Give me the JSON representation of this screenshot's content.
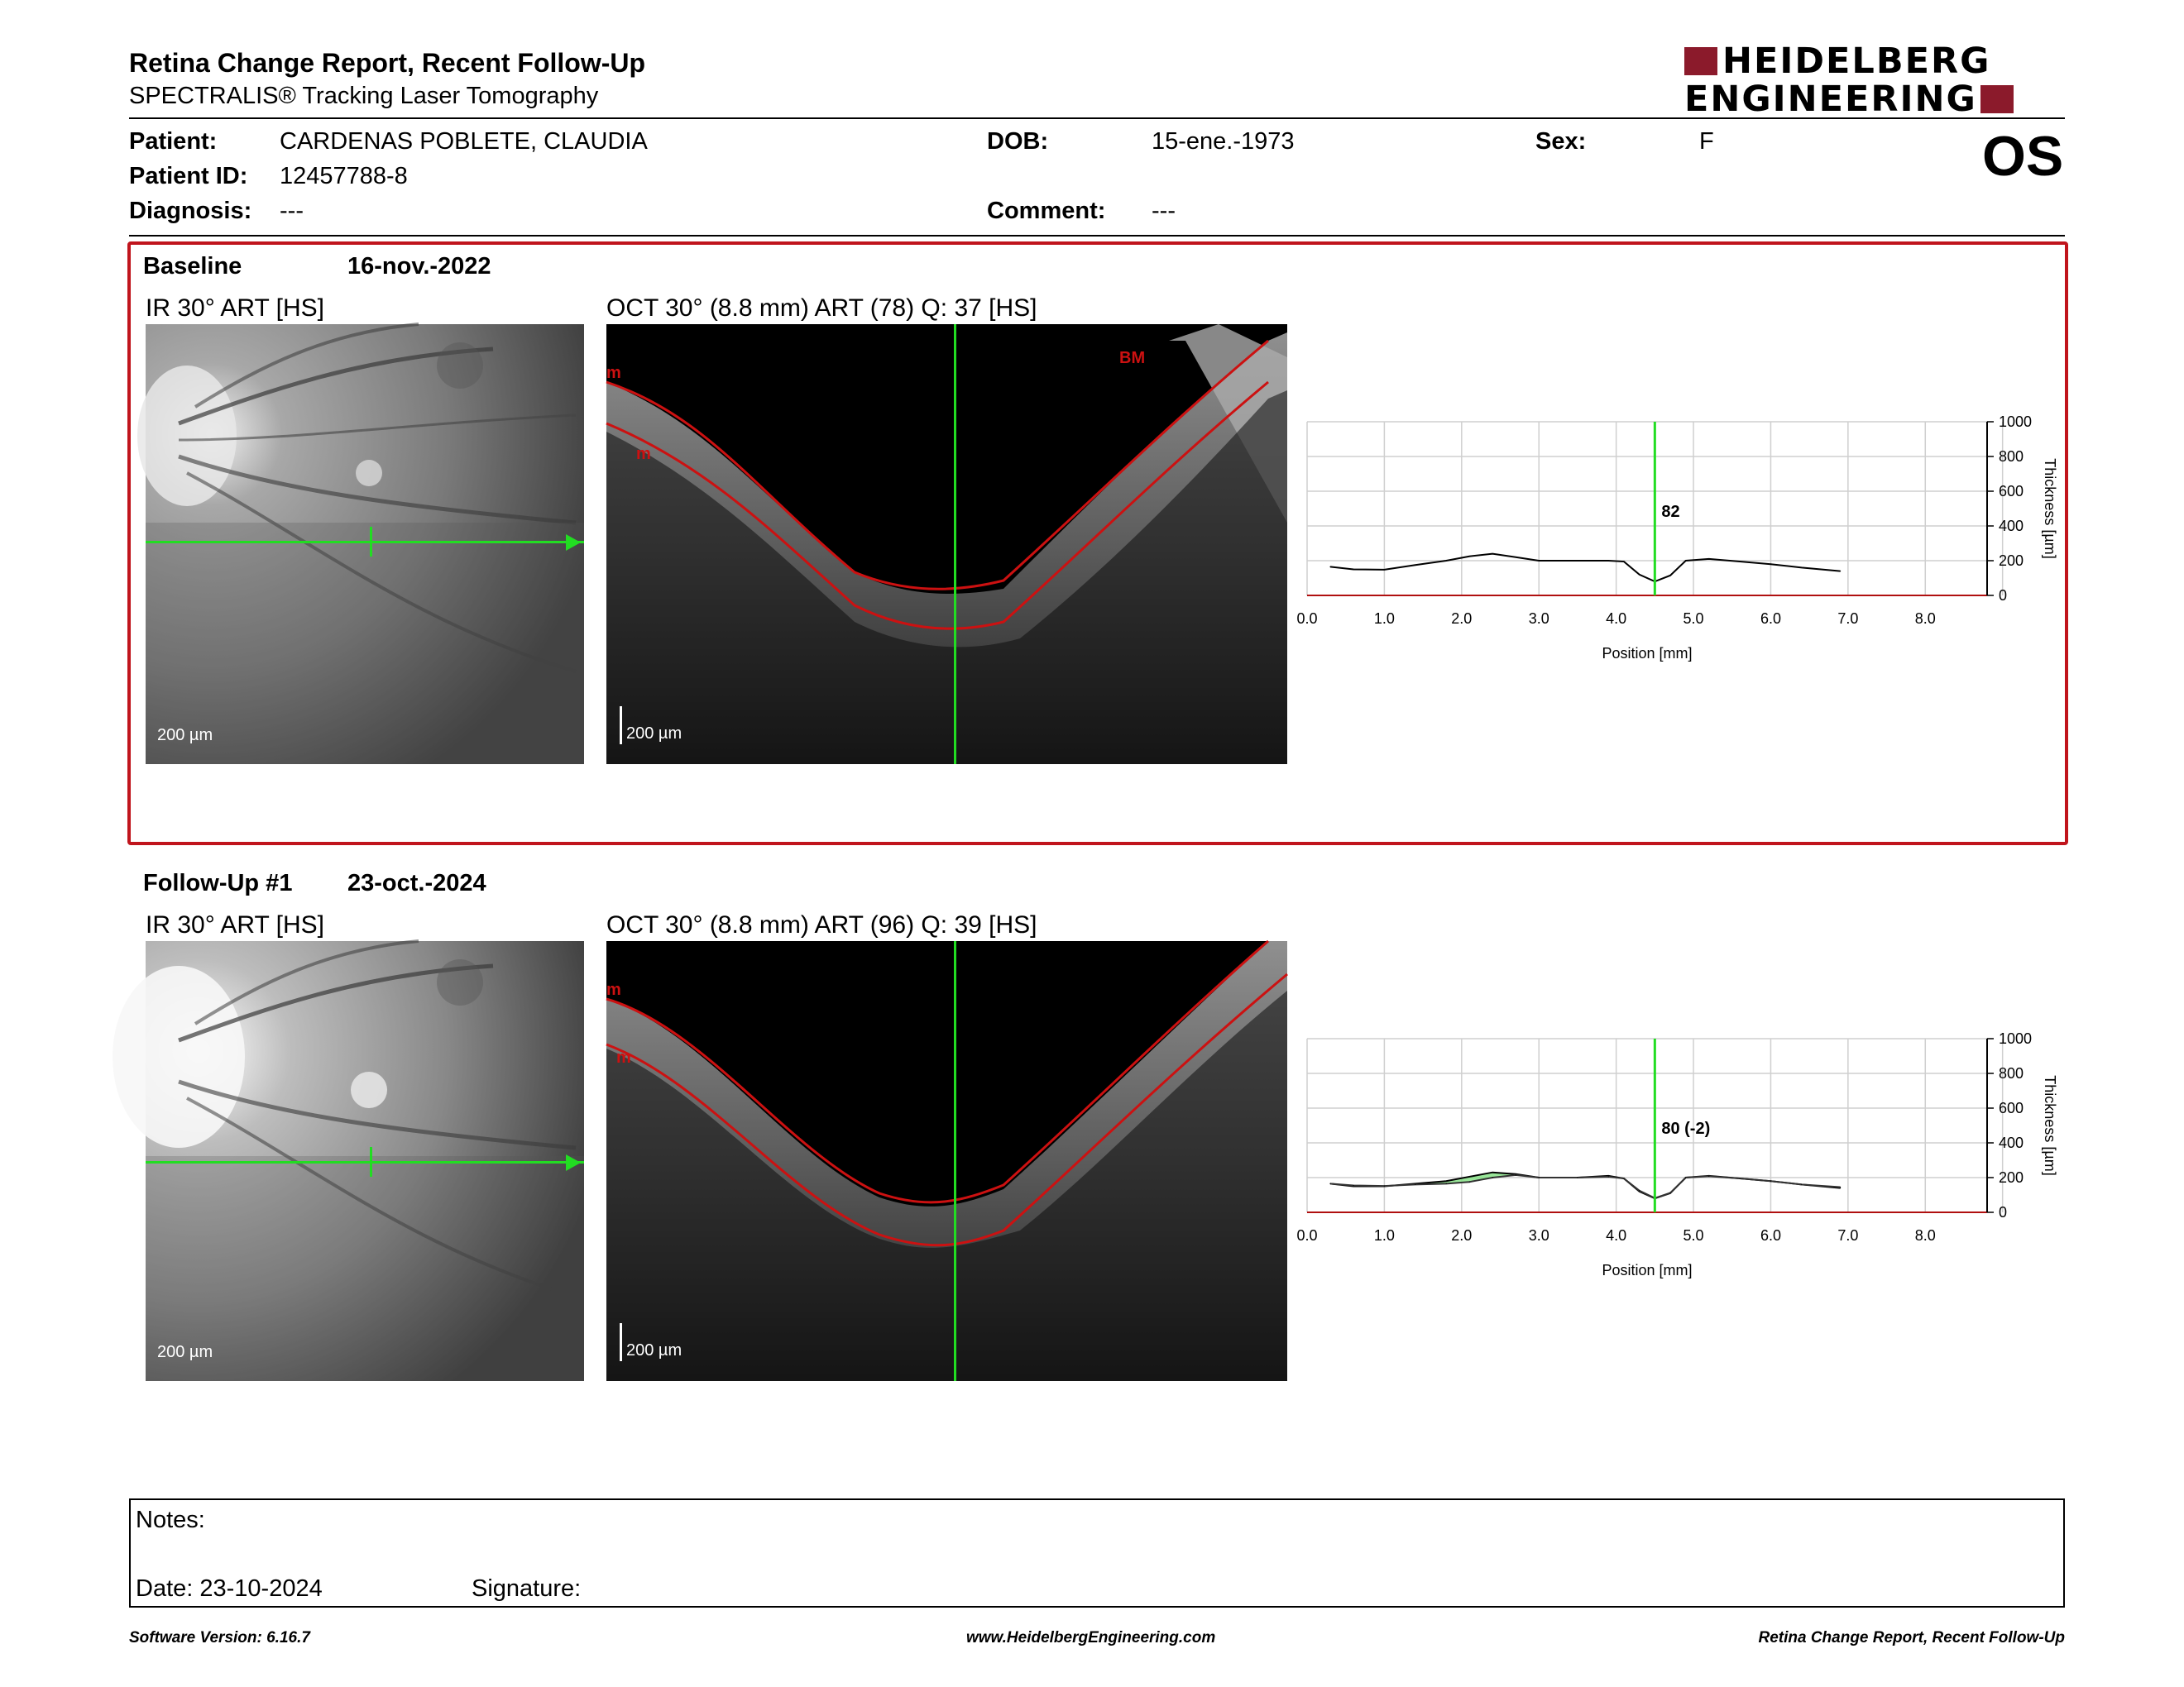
{
  "header": {
    "title": "Retina Change Report, Recent Follow-Up",
    "subtitle": "SPECTRALIS® Tracking Laser Tomography",
    "logo_line1": "HEIDELBERG",
    "logo_line2": "ENGINEERING",
    "eye": "OS"
  },
  "patient": {
    "patient_label": "Patient:",
    "patient_value": "CARDENAS POBLETE, CLAUDIA",
    "dob_label": "DOB:",
    "dob_value": "15-ene.-1973",
    "sex_label": "Sex:",
    "sex_value": "F",
    "id_label": "Patient ID:",
    "id_value": "12457788-8",
    "diagnosis_label": "Diagnosis:",
    "diagnosis_value": "---",
    "comment_label": "Comment:",
    "comment_value": "---"
  },
  "baseline": {
    "label": "Baseline",
    "date": "16-nov.-2022",
    "ir_label": "IR 30° ART [HS]",
    "oct_label": "OCT 30° (8.8 mm) ART (78) Q: 37 [HS]",
    "scale": "200 µm",
    "layer_ilm": "m",
    "layer_rpe": "m",
    "layer_bm": "BM",
    "marker_value": "82"
  },
  "followup": {
    "label": "Follow-Up #1",
    "date": "23-oct.-2024",
    "ir_label": "IR 30° ART [HS]",
    "oct_label": "OCT 30° (8.8 mm) ART (96) Q: 39 [HS]",
    "scale": "200 µm",
    "layer_ilm": "m",
    "layer_rpe": "m",
    "marker_value": "80 (-2)"
  },
  "chart_data": [
    {
      "type": "line",
      "xlabel": "Position [mm]",
      "ylabel": "Thickness [µm]",
      "xlim": [
        0,
        8.8
      ],
      "ylim": [
        0,
        1000
      ],
      "x_ticks": [
        "0.0",
        "1.0",
        "2.0",
        "3.0",
        "4.0",
        "5.0",
        "6.0",
        "7.0",
        "8.0"
      ],
      "y_ticks": [
        "0",
        "200",
        "400",
        "600",
        "800",
        "1000"
      ],
      "grid": true,
      "marker_x": 4.5,
      "series": [
        {
          "x": [
            0.3,
            0.6,
            1.0,
            1.4,
            1.8,
            2.1,
            2.4,
            2.7,
            3.0,
            3.5,
            3.9,
            4.1,
            4.3,
            4.5,
            4.7,
            4.9,
            5.2,
            5.6,
            6.0,
            6.4,
            6.9
          ],
          "values": [
            165,
            150,
            148,
            175,
            200,
            225,
            240,
            220,
            200,
            200,
            200,
            195,
            120,
            80,
            115,
            200,
            210,
            195,
            180,
            160,
            140
          ]
        }
      ]
    },
    {
      "type": "line",
      "xlabel": "Position [mm]",
      "ylabel": "Thickness [µm]",
      "xlim": [
        0,
        8.8
      ],
      "ylim": [
        0,
        1000
      ],
      "x_ticks": [
        "0.0",
        "1.0",
        "2.0",
        "3.0",
        "4.0",
        "5.0",
        "6.0",
        "7.0",
        "8.0"
      ],
      "y_ticks": [
        "0",
        "200",
        "400",
        "600",
        "800",
        "1000"
      ],
      "grid": true,
      "marker_x": 4.5,
      "series": [
        {
          "x": [
            0.3,
            0.6,
            1.0,
            1.4,
            1.8,
            2.1,
            2.4,
            2.7,
            3.0,
            3.5,
            3.9,
            4.1,
            4.3,
            4.5,
            4.7,
            4.9,
            5.2,
            5.6,
            6.0,
            6.4,
            6.9
          ],
          "values": [
            165,
            150,
            150,
            165,
            180,
            205,
            230,
            220,
            200,
            200,
            210,
            195,
            120,
            80,
            110,
            200,
            210,
            195,
            180,
            160,
            140
          ]
        },
        {
          "x": [
            0.3,
            0.6,
            1.0,
            1.4,
            1.8,
            2.1,
            2.4,
            2.7,
            3.0,
            3.5,
            3.9,
            4.1,
            4.3,
            4.5,
            4.7,
            4.9,
            5.2,
            5.6,
            6.0,
            6.4,
            6.9
          ],
          "values": [
            165,
            155,
            152,
            160,
            165,
            175,
            200,
            215,
            200,
            200,
            205,
            195,
            125,
            82,
            112,
            200,
            208,
            195,
            180,
            160,
            145
          ]
        }
      ]
    }
  ],
  "notes": {
    "notes_label": "Notes:",
    "date_label": "Date: 23-10-2024",
    "signature_label": "Signature:"
  },
  "footer": {
    "left": "Software Version: 6.16.7",
    "center": "www.HeidelbergEngineering.com",
    "right": "Retina Change Report, Recent Follow-Up"
  },
  "colors": {
    "accent_red": "#c0141c",
    "logo_red": "#8b1a2b",
    "green": "#22dd22",
    "layer_red": "#cc1111"
  }
}
